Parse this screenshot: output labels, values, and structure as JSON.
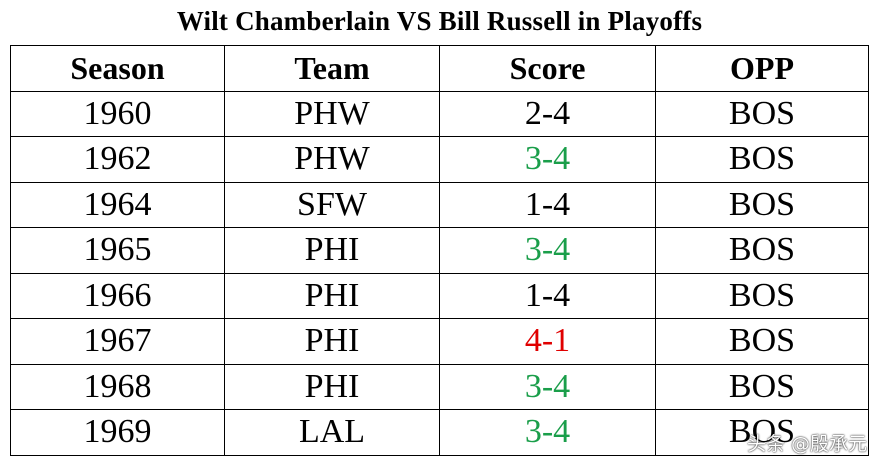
{
  "title": "Wilt Chamberlain VS Bill Russell in Playoffs",
  "columns": [
    "Season",
    "Team",
    "Score",
    "OPP"
  ],
  "rows": [
    {
      "season": "1960",
      "team": "PHW",
      "score": "2-4",
      "opp": "BOS",
      "score_color": "#000000"
    },
    {
      "season": "1962",
      "team": "PHW",
      "score": "3-4",
      "opp": "BOS",
      "score_color": "#1a9e4a"
    },
    {
      "season": "1964",
      "team": "SFW",
      "score": "1-4",
      "opp": "BOS",
      "score_color": "#000000"
    },
    {
      "season": "1965",
      "team": "PHI",
      "score": "3-4",
      "opp": "BOS",
      "score_color": "#1a9e4a"
    },
    {
      "season": "1966",
      "team": "PHI",
      "score": "1-4",
      "opp": "BOS",
      "score_color": "#000000"
    },
    {
      "season": "1967",
      "team": "PHI",
      "score": "4-1",
      "opp": "BOS",
      "score_color": "#e00000"
    },
    {
      "season": "1968",
      "team": "PHI",
      "score": "3-4",
      "opp": "BOS",
      "score_color": "#1a9e4a"
    },
    {
      "season": "1969",
      "team": "LAL",
      "score": "3-4",
      "opp": "BOS",
      "score_color": "#1a9e4a"
    }
  ],
  "watermark": {
    "text": "头条 @殷承元"
  }
}
